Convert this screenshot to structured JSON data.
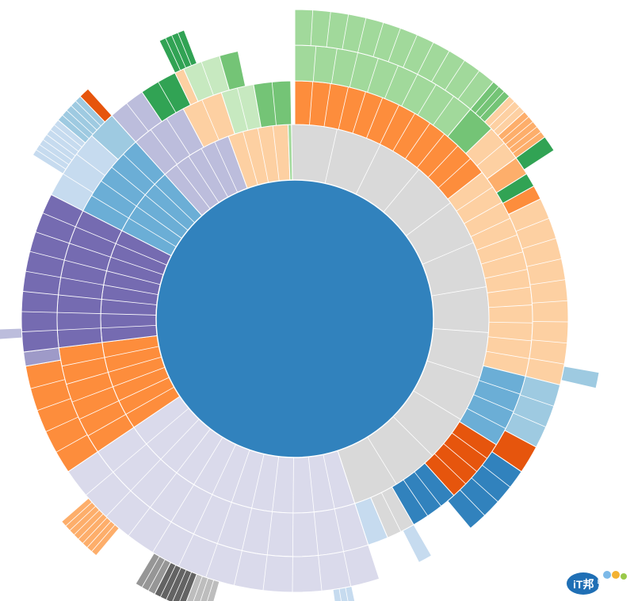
{
  "chart_data": {
    "type": "sunburst",
    "title": "",
    "root": {
      "color": "#3182bd"
    },
    "levels": 4,
    "ring1": [
      {
        "start": -1,
        "end": 162,
        "color": "#d9d9d9"
      },
      {
        "start": 162,
        "end": 236,
        "color": "#dadaeb"
      },
      {
        "start": 236,
        "end": 263,
        "color": "#fd8d3c"
      },
      {
        "start": 263,
        "end": 297,
        "color": "#756bb1"
      },
      {
        "start": 297,
        "end": 318,
        "color": "#6baed6"
      },
      {
        "start": 318,
        "end": 340,
        "color": "#bcbddc"
      },
      {
        "start": 340,
        "end": 358,
        "color": "#fdd0a2"
      },
      {
        "start": 358,
        "end": 359,
        "color": "#a1d99b"
      }
    ],
    "ring2": [
      {
        "start": 0,
        "end": 52,
        "color": "#fd8d3c"
      },
      {
        "start": 52,
        "end": 104,
        "color": "#fdd0a2"
      },
      {
        "start": 104,
        "end": 122,
        "color": "#6baed6"
      },
      {
        "start": 122,
        "end": 138,
        "color": "#e6550d"
      },
      {
        "start": 138,
        "end": 150,
        "color": "#3182bd"
      },
      {
        "start": 150,
        "end": 157,
        "color": "#d9d9d9"
      },
      {
        "start": 157,
        "end": 162,
        "color": "#c6dbef"
      },
      {
        "start": 162,
        "end": 236,
        "color": "#dadaeb"
      },
      {
        "start": 236,
        "end": 263,
        "color": "#fd8d3c"
      },
      {
        "start": 263,
        "end": 297,
        "color": "#756bb1"
      },
      {
        "start": 297,
        "end": 318,
        "color": "#6baed6"
      },
      {
        "start": 318,
        "end": 332,
        "color": "#bcbddc"
      },
      {
        "start": 332,
        "end": 342,
        "color": "#fdd0a2"
      },
      {
        "start": 342,
        "end": 350,
        "color": "#c7e9c0"
      },
      {
        "start": 350,
        "end": 359,
        "color": "#74c476"
      }
    ],
    "ring3": [
      {
        "start": 0,
        "end": 40,
        "color": "#a1d99b"
      },
      {
        "start": 40,
        "end": 46,
        "color": "#74c476"
      },
      {
        "start": 46,
        "end": 54,
        "color": "#fdd0a2"
      },
      {
        "start": 54,
        "end": 58,
        "color": "#fdae6b"
      },
      {
        "start": 58,
        "end": 61,
        "color": "#31a354"
      },
      {
        "start": 61,
        "end": 64,
        "color": "#fd8d3c"
      },
      {
        "start": 64,
        "end": 104,
        "color": "#fdd0a2"
      },
      {
        "start": 104,
        "end": 118,
        "color": "#9ecae1"
      },
      {
        "start": 118,
        "end": 124,
        "color": "#e6550d"
      },
      {
        "start": 124,
        "end": 140,
        "color": "#3182bd"
      },
      {
        "start": 150,
        "end": 153,
        "color": "#c6dbef"
      },
      {
        "start": 162,
        "end": 236,
        "color": "#dadaeb"
      },
      {
        "start": 236,
        "end": 260,
        "color": "#fd8d3c"
      },
      {
        "start": 260,
        "end": 263,
        "color": "#9e9ac8"
      },
      {
        "start": 263,
        "end": 297,
        "color": "#756bb1"
      },
      {
        "start": 297,
        "end": 312,
        "color": "#c6dbef"
      },
      {
        "start": 312,
        "end": 318,
        "color": "#9ecae1"
      },
      {
        "start": 318,
        "end": 326,
        "color": "#bcbddc"
      },
      {
        "start": 326,
        "end": 334,
        "color": "#31a354"
      },
      {
        "start": 334,
        "end": 336,
        "color": "#fdd0a2"
      },
      {
        "start": 336,
        "end": 344,
        "color": "#c7e9c0"
      },
      {
        "start": 344,
        "end": 348,
        "color": "#74c476"
      }
    ],
    "ring4": [
      {
        "start": 0,
        "end": 40,
        "color": "#a1d99b"
      },
      {
        "start": 40,
        "end": 44,
        "color": "#74c476"
      },
      {
        "start": 44,
        "end": 48,
        "color": "#fdd0a2"
      },
      {
        "start": 48,
        "end": 54,
        "color": "#fdae6b"
      },
      {
        "start": 54,
        "end": 57,
        "color": "#31a354"
      },
      {
        "start": 100,
        "end": 103,
        "color": "#9ecae1"
      },
      {
        "start": 168,
        "end": 172,
        "color": "#c6dbef"
      },
      {
        "start": 196,
        "end": 201,
        "color": "#bdbdbd"
      },
      {
        "start": 201,
        "end": 207,
        "color": "#636363"
      },
      {
        "start": 207,
        "end": 211,
        "color": "#969696"
      },
      {
        "start": 220,
        "end": 229,
        "color": "#fdae6b"
      },
      {
        "start": 266,
        "end": 268,
        "color": "#bcbddc"
      },
      {
        "start": 302,
        "end": 310,
        "color": "#c6dbef"
      },
      {
        "start": 310,
        "end": 316,
        "color": "#9ecae1"
      },
      {
        "start": 316,
        "end": 318,
        "color": "#e6550d"
      },
      {
        "start": 334,
        "end": 339,
        "color": "#31a354"
      }
    ],
    "watermark": {
      "text": "iT邦 幫忙"
    }
  }
}
